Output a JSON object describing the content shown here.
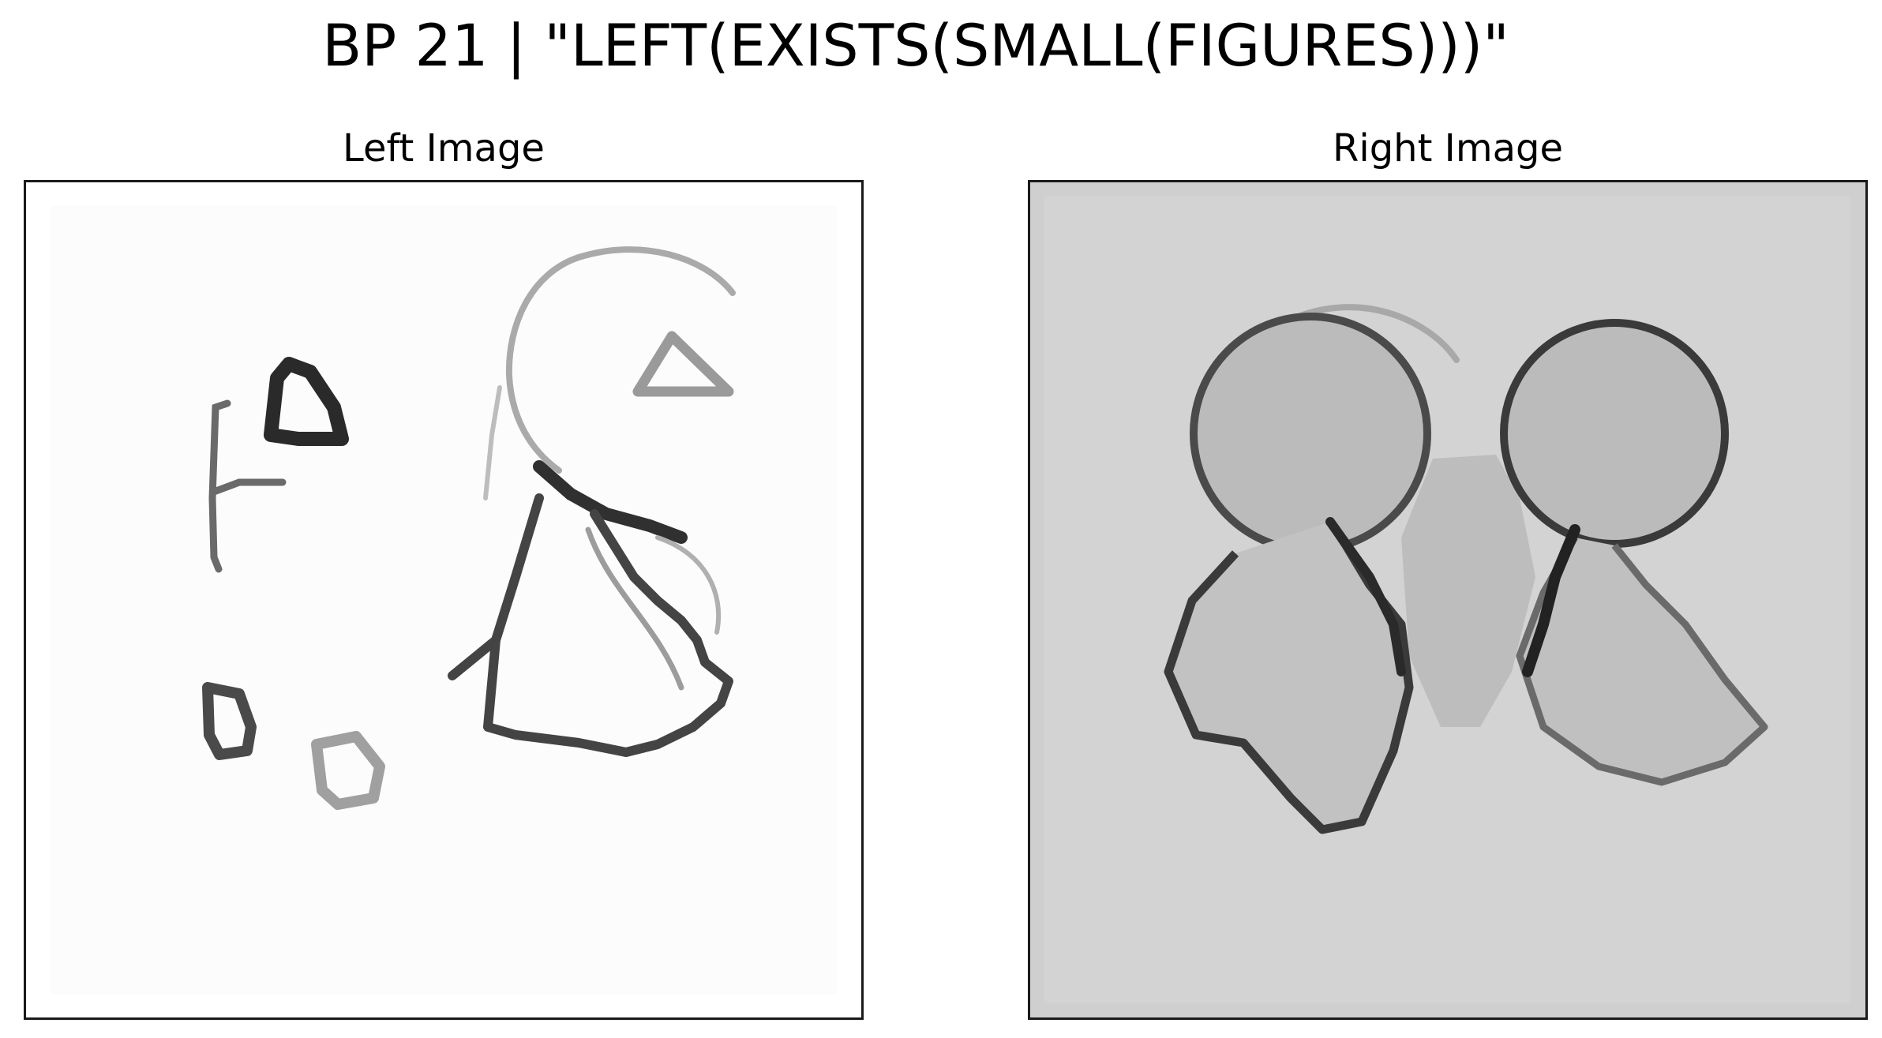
{
  "figure": {
    "title": "BP 21 | \"LEFT(EXISTS(SMALL(FIGURES)))\""
  },
  "panels": [
    {
      "id": "left",
      "title": "Left Image",
      "background": "#ffffff",
      "figures": [
        "small-triangle",
        "small-hook",
        "small-outlined-triangle",
        "small-square",
        "small-square-light",
        "large-open-arc",
        "large-quadrilateral"
      ]
    },
    {
      "id": "right",
      "title": "Right Image",
      "background": "#cfcfcf",
      "figures": [
        "large-circle",
        "large-circle",
        "large-blob",
        "large-blob",
        "large-arc"
      ]
    }
  ],
  "colors": {
    "stroke_dark": "#2a2a2a",
    "stroke_mid": "#555555",
    "stroke_light": "#9a9a9a",
    "fill_gray": "#b9b9b9"
  }
}
